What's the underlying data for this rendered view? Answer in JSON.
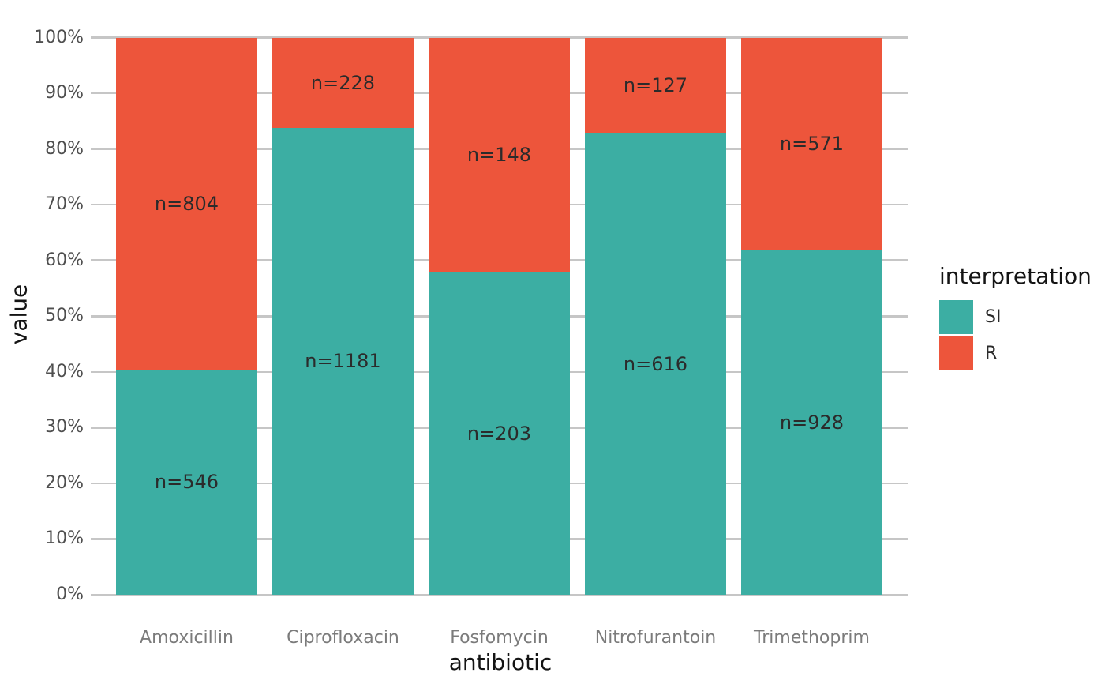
{
  "chart_data": {
    "type": "bar",
    "stacked": true,
    "normalized_to_percent": true,
    "title": "",
    "xlabel": "antibiotic",
    "ylabel": "value",
    "categories": [
      "Amoxicillin",
      "Ciprofloxacin",
      "Fosfomycin",
      "Nitrofurantoin",
      "Trimethoprim"
    ],
    "series": [
      {
        "name": "SI",
        "color": "#3CAEA3",
        "values": [
          546,
          1181,
          203,
          616,
          928
        ]
      },
      {
        "name": "R",
        "color": "#ED553B",
        "values": [
          804,
          228,
          148,
          127,
          571
        ]
      }
    ],
    "segment_percent_si": [
      40.4,
      83.8,
      57.8,
      82.9,
      61.9
    ],
    "bar_label_format": "n={value}",
    "y_ticks": [
      "0%",
      "10%",
      "20%",
      "30%",
      "40%",
      "50%",
      "60%",
      "70%",
      "80%",
      "90%",
      "100%"
    ],
    "ylim": [
      0,
      100
    ],
    "grid": "horizontal-major",
    "legend": {
      "title": "interpretation",
      "position": "right",
      "entries": [
        "SI",
        "R"
      ]
    }
  }
}
